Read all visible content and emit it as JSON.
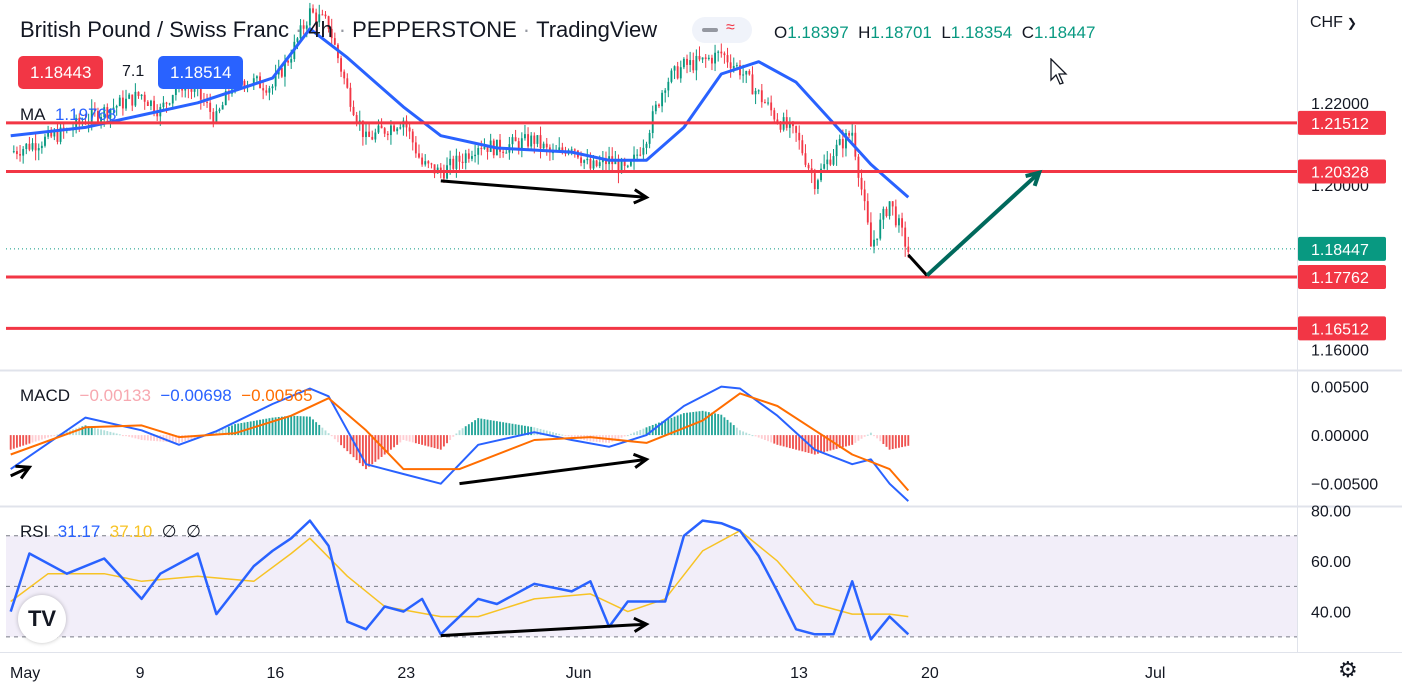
{
  "header": {
    "symbol": "British Pound / Swiss Franc",
    "timeframe": "4h",
    "exchange": "PEPPERSTONE",
    "platform": "TradingView",
    "open_label": "O",
    "open": "1.18397",
    "high_label": "H",
    "high": "1.18701",
    "low_label": "L",
    "low": "1.18354",
    "close_label": "C",
    "close": "1.18447",
    "sell_price": "1.18443",
    "spread": "7.1",
    "buy_price": "1.18514",
    "ma_label": "MA",
    "ma_value": "1.19768",
    "currency": "CHF"
  },
  "colors": {
    "up": "#089981",
    "down": "#f23645",
    "ma": "#2962ff",
    "level": "#f23645",
    "macd_line": "#2962ff",
    "signal_line": "#ff6d00",
    "rsi_line": "#2962ff",
    "rsi_ma": "#f7c325",
    "annotation": "#000000",
    "target_arrow": "#00695c"
  },
  "icons": {
    "logo": "tradingview-logo-icon",
    "settings": "gear-icon",
    "cursor": "mouse-cursor-icon",
    "dropdown": "chevron-down-icon"
  },
  "chart_data": [
    {
      "type": "candlestick",
      "title": "British Pound / Swiss Franc · 4h · PEPPERSTONE",
      "ylim": [
        1.155,
        1.245
      ],
      "y_ticks": [
        "1.22000",
        "1.20000",
        "1.16000"
      ],
      "x_ticks": [
        "May",
        "9",
        "16",
        "23",
        "Jun",
        "13",
        "20",
        "Jul"
      ],
      "current_price": "1.18447",
      "horizontal_levels": [
        "1.21512",
        "1.20328",
        "1.17762",
        "1.16512"
      ],
      "close_path": [
        [
          "May 2",
          1.208
        ],
        [
          "May 5",
          1.213
        ],
        [
          "May 6",
          1.216
        ],
        [
          "May 9",
          1.222
        ],
        [
          "May 10",
          1.218
        ],
        [
          "May 11",
          1.225
        ],
        [
          "May 12",
          1.222
        ],
        [
          "May 13",
          1.216
        ],
        [
          "May 14",
          1.226
        ],
        [
          "May 16",
          1.224
        ],
        [
          "May 17",
          1.232
        ],
        [
          "May 18",
          1.242
        ],
        [
          "May 19",
          1.239
        ],
        [
          "May 20",
          1.223
        ],
        [
          "May 21",
          1.211
        ],
        [
          "May 23",
          1.216
        ],
        [
          "May 24",
          1.205
        ],
        [
          "May 25",
          1.203
        ],
        [
          "May 26",
          1.206
        ],
        [
          "May 27",
          1.21
        ],
        [
          "May 28",
          1.209
        ],
        [
          "May 30",
          1.211
        ],
        [
          "May 31",
          1.207
        ],
        [
          "Jun 1",
          1.21
        ],
        [
          "Jun 2",
          1.204
        ],
        [
          "Jun 3",
          1.206
        ],
        [
          "Jun 4",
          1.203
        ],
        [
          "Jun 5",
          1.212
        ],
        [
          "Jun 6",
          1.225
        ],
        [
          "Jun 7",
          1.229
        ],
        [
          "Jun 8",
          1.23
        ],
        [
          "Jun 9",
          1.232
        ],
        [
          "Jun 10",
          1.228
        ],
        [
          "Jun 11",
          1.222
        ],
        [
          "Jun 12",
          1.216
        ],
        [
          "Jun 13",
          1.212
        ],
        [
          "Jun 14",
          1.201
        ],
        [
          "Jun 15",
          1.208
        ],
        [
          "Jun 16",
          1.213
        ],
        [
          "Jun 17",
          1.185
        ],
        [
          "Jun 18",
          1.196
        ],
        [
          "Jun 19",
          1.184
        ]
      ],
      "ma_path": [
        [
          "May 2",
          1.212
        ],
        [
          "May 6",
          1.214
        ],
        [
          "May 9",
          1.217
        ],
        [
          "May 12",
          1.22
        ],
        [
          "May 16",
          1.226
        ],
        [
          "May 18",
          1.238
        ],
        [
          "May 20",
          1.231
        ],
        [
          "May 23",
          1.219
        ],
        [
          "May 25",
          1.212
        ],
        [
          "May 28",
          1.209
        ],
        [
          "Jun 1",
          1.208
        ],
        [
          "Jun 3",
          1.206
        ],
        [
          "Jun 5",
          1.206
        ],
        [
          "Jun 7",
          1.214
        ],
        [
          "Jun 9",
          1.227
        ],
        [
          "Jun 11",
          1.23
        ],
        [
          "Jun 13",
          1.225
        ],
        [
          "Jun 15",
          1.215
        ],
        [
          "Jun 17",
          1.205
        ],
        [
          "Jun 19",
          1.197
        ]
      ],
      "annotations": [
        {
          "type": "arrow",
          "color": "black",
          "from": [
            "May 25",
            1.201
          ],
          "to": [
            "Jun 5",
            1.197
          ]
        },
        {
          "type": "line",
          "color": "black",
          "from": [
            "Jun 19",
            1.183
          ],
          "to": [
            "Jun 20",
            1.178
          ]
        },
        {
          "type": "arrow",
          "color": "green",
          "from": [
            "Jun 20",
            1.178
          ],
          "to": [
            "Jun 26",
            1.203
          ]
        }
      ]
    },
    {
      "type": "macd",
      "title": "MACD",
      "values": {
        "histogram": "−0.00133",
        "macd": "−0.00698",
        "signal": "−0.00565"
      },
      "y_ticks": [
        "0.00500",
        "0.00000",
        "−0.00500"
      ],
      "ylim": [
        -0.0073,
        0.0065
      ],
      "macd_path": [
        [
          "May 2",
          -0.0035
        ],
        [
          "May 6",
          0.0018
        ],
        [
          "May 9",
          0.0005
        ],
        [
          "May 11",
          -0.001
        ],
        [
          "May 13",
          0.0004
        ],
        [
          "May 16",
          0.0032
        ],
        [
          "May 18",
          0.0048
        ],
        [
          "May 19",
          0.004
        ],
        [
          "May 21",
          -0.003
        ],
        [
          "May 23",
          -0.004
        ],
        [
          "May 25",
          -0.005
        ],
        [
          "May 27",
          -0.001
        ],
        [
          "May 30",
          0.0003
        ],
        [
          "Jun 1",
          -0.0005
        ],
        [
          "Jun 3",
          -0.0012
        ],
        [
          "Jun 5",
          0.0
        ],
        [
          "Jun 7",
          0.003
        ],
        [
          "Jun 9",
          0.005
        ],
        [
          "Jun 10",
          0.0048
        ],
        [
          "Jun 12",
          0.002
        ],
        [
          "Jun 14",
          -0.0015
        ],
        [
          "Jun 16",
          -0.003
        ],
        [
          "Jun 17",
          -0.0025
        ],
        [
          "Jun 18",
          -0.005
        ],
        [
          "Jun 19",
          -0.0068
        ]
      ],
      "signal_path": [
        [
          "May 2",
          -0.002
        ],
        [
          "May 6",
          0.0008
        ],
        [
          "May 9",
          0.001
        ],
        [
          "May 11",
          -0.0002
        ],
        [
          "May 14",
          0.0002
        ],
        [
          "May 17",
          0.002
        ],
        [
          "May 19",
          0.0038
        ],
        [
          "May 21",
          0.0005
        ],
        [
          "May 23",
          -0.0035
        ],
        [
          "May 26",
          -0.0035
        ],
        [
          "May 30",
          -0.0005
        ],
        [
          "Jun 2",
          -0.0002
        ],
        [
          "Jun 5",
          -0.0008
        ],
        [
          "Jun 8",
          0.0015
        ],
        [
          "Jun 10",
          0.0043
        ],
        [
          "Jun 12",
          0.003
        ],
        [
          "Jun 14",
          0.0005
        ],
        [
          "Jun 16",
          -0.002
        ],
        [
          "Jun 18",
          -0.0035
        ],
        [
          "Jun 19",
          -0.0057
        ]
      ],
      "annotations": [
        {
          "type": "arrow",
          "color": "black",
          "from": [
            "May 2",
            -0.0042
          ],
          "to": [
            "May 3",
            -0.0033
          ]
        },
        {
          "type": "arrow",
          "color": "black",
          "from": [
            "May 26",
            -0.005
          ],
          "to": [
            "Jun 5",
            -0.0025
          ]
        }
      ]
    },
    {
      "type": "rsi",
      "title": "RSI",
      "values": {
        "rsi": "31.17",
        "rsi_ma": "37.10",
        "extra1": "∅",
        "extra2": "∅"
      },
      "y_ticks": [
        "80.00",
        "60.00",
        "40.00"
      ],
      "ylim": [
        24,
        81
      ],
      "bands": [
        30,
        50,
        70
      ],
      "rsi_path": [
        [
          "May 2",
          40
        ],
        [
          "May 3",
          63
        ],
        [
          "May 5",
          55
        ],
        [
          "May 7",
          61
        ],
        [
          "May 9",
          45
        ],
        [
          "May 10",
          55
        ],
        [
          "May 12",
          63
        ],
        [
          "May 13",
          39
        ],
        [
          "May 15",
          58
        ],
        [
          "May 16",
          64
        ],
        [
          "May 17",
          69
        ],
        [
          "May 18",
          76
        ],
        [
          "May 19",
          66
        ],
        [
          "May 20",
          36
        ],
        [
          "May 21",
          33
        ],
        [
          "May 22",
          42
        ],
        [
          "May 23",
          40
        ],
        [
          "May 24",
          45
        ],
        [
          "May 25",
          31
        ],
        [
          "May 27",
          45
        ],
        [
          "May 28",
          43
        ],
        [
          "May 30",
          51
        ],
        [
          "Jun 1",
          48
        ],
        [
          "Jun 2",
          52
        ],
        [
          "Jun 3",
          34
        ],
        [
          "Jun 4",
          44
        ],
        [
          "Jun 6",
          44
        ],
        [
          "Jun 7",
          70
        ],
        [
          "Jun 8",
          76
        ],
        [
          "Jun 9",
          75
        ],
        [
          "Jun 10",
          72
        ],
        [
          "Jun 11",
          62
        ],
        [
          "Jun 12",
          48
        ],
        [
          "Jun 13",
          33
        ],
        [
          "Jun 14",
          31
        ],
        [
          "Jun 15",
          31
        ],
        [
          "Jun 16",
          52
        ],
        [
          "Jun 17",
          29
        ],
        [
          "Jun 18",
          38
        ],
        [
          "Jun 19",
          31
        ]
      ],
      "rsi_ma_path": [
        [
          "May 2",
          44
        ],
        [
          "May 4",
          55
        ],
        [
          "May 7",
          55
        ],
        [
          "May 9",
          52
        ],
        [
          "May 12",
          54
        ],
        [
          "May 15",
          52
        ],
        [
          "May 17",
          63
        ],
        [
          "May 18",
          69
        ],
        [
          "May 20",
          54
        ],
        [
          "May 22",
          42
        ],
        [
          "May 25",
          38
        ],
        [
          "May 27",
          38
        ],
        [
          "May 30",
          45
        ],
        [
          "Jun 2",
          47
        ],
        [
          "Jun 4",
          40
        ],
        [
          "Jun 6",
          45
        ],
        [
          "Jun 8",
          64
        ],
        [
          "Jun 10",
          72
        ],
        [
          "Jun 12",
          60
        ],
        [
          "Jun 14",
          43
        ],
        [
          "Jun 16",
          39
        ],
        [
          "Jun 18",
          39
        ],
        [
          "Jun 19",
          38
        ]
      ],
      "annotations": [
        {
          "type": "arrow",
          "color": "black",
          "from": [
            "May 25",
            30.5
          ],
          "to": [
            "Jun 5",
            35
          ]
        }
      ]
    }
  ]
}
